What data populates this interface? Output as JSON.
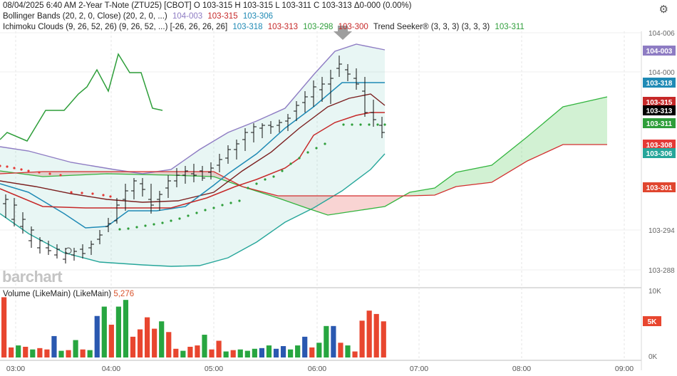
{
  "header": {
    "line1": "08/04/2025  6:40 AM 2-Year T-Note (ZTU25) [CBOT] O 103-315 H 103-315 L 103-311 C 103-313 Δ0-000 (0.00%)",
    "bb_label": "Bollinger Bands (20, 2, 0, Close)  (20, 2, 0, ...)",
    "bb_v1": "104-003",
    "bb_v2": "103-315",
    "bb_v3": "103-306",
    "ich_label": "Ichimoku Clouds (9, 26, 52, 26)  (9, 26, 52, ...) [-26, 26, 26, 26]",
    "ich_v1": "103-318",
    "ich_v2": "103-313",
    "ich_v3": "103-298",
    "ich_v4": "103-300",
    "ts_label": "Trend Seeker® (3, 3, 3)  (3, 3, 3)",
    "ts_v": "103-311"
  },
  "logo": "barchart",
  "volume_label": "Volume (LikeMain)  (LikeMain)",
  "volume_value": "5,276",
  "icons": {
    "settings": "gear-icon",
    "marker": "down-arrow-icon"
  },
  "chart_data": {
    "type": "candlestick",
    "price_axis": {
      "ticks": [
        "104-006",
        "104-000",
        "103-294",
        "103-288"
      ]
    },
    "badges": [
      {
        "label": "104-003",
        "color": "#8e7cc3"
      },
      {
        "label": "103-318",
        "color": "#1f8ab5"
      },
      {
        "label": "103-315",
        "color": "#c62828"
      },
      {
        "label": "103-313",
        "color": "#000000"
      },
      {
        "label": "103-311",
        "color": "#2e9e3a"
      },
      {
        "label": "103-308",
        "color": "#e53935"
      },
      {
        "label": "103-306",
        "color": "#26a69a"
      },
      {
        "label": "103-301",
        "color": "#e0462f"
      }
    ],
    "time_axis": {
      "ticks": [
        "03:00",
        "04:00",
        "05:00",
        "06:00",
        "07:00",
        "08:00",
        "09:00"
      ]
    },
    "volume_axis": {
      "ticks": [
        "10K",
        "5K",
        "0K"
      ],
      "badge": "5K"
    },
    "volume": [
      [
        9000,
        "red"
      ],
      [
        1500,
        "red"
      ],
      [
        1800,
        "green"
      ],
      [
        1600,
        "red"
      ],
      [
        1200,
        "green"
      ],
      [
        1400,
        "red"
      ],
      [
        1200,
        "red"
      ],
      [
        3200,
        "blue"
      ],
      [
        1000,
        "green"
      ],
      [
        1100,
        "red"
      ],
      [
        2600,
        "green"
      ],
      [
        1200,
        "red"
      ],
      [
        1100,
        "green"
      ],
      [
        6200,
        "blue"
      ],
      [
        7600,
        "green"
      ],
      [
        4900,
        "red"
      ],
      [
        7600,
        "green"
      ],
      [
        8600,
        "green"
      ],
      [
        3100,
        "red"
      ],
      [
        4200,
        "red"
      ],
      [
        6000,
        "red"
      ],
      [
        4300,
        "red"
      ],
      [
        5400,
        "green"
      ],
      [
        3800,
        "red"
      ],
      [
        1300,
        "red"
      ],
      [
        1000,
        "green"
      ],
      [
        1600,
        "red"
      ],
      [
        1800,
        "red"
      ],
      [
        3400,
        "green"
      ],
      [
        1200,
        "red"
      ],
      [
        2500,
        "red"
      ],
      [
        900,
        "green"
      ],
      [
        1100,
        "red"
      ],
      [
        1200,
        "green"
      ],
      [
        1000,
        "green"
      ],
      [
        1300,
        "green"
      ],
      [
        1400,
        "blue"
      ],
      [
        1800,
        "green"
      ],
      [
        1300,
        "blue"
      ],
      [
        1700,
        "blue"
      ],
      [
        1200,
        "green"
      ],
      [
        1800,
        "green"
      ],
      [
        3100,
        "blue"
      ],
      [
        1500,
        "red"
      ],
      [
        2200,
        "green"
      ],
      [
        4700,
        "green"
      ],
      [
        4700,
        "blue"
      ],
      [
        2200,
        "red"
      ],
      [
        1800,
        "green"
      ],
      [
        900,
        "red"
      ],
      [
        5500,
        "red"
      ],
      [
        7000,
        "red"
      ],
      [
        6500,
        "red"
      ],
      [
        5400,
        "red"
      ]
    ]
  }
}
